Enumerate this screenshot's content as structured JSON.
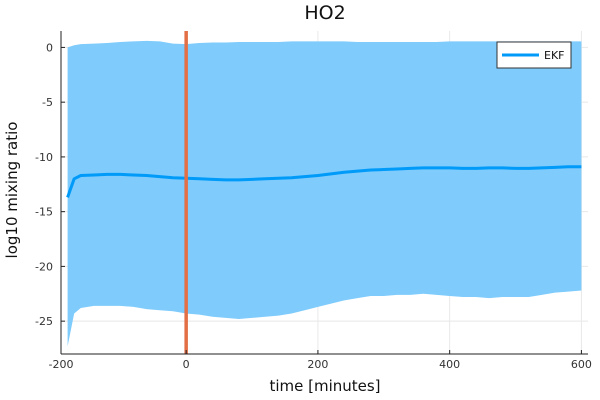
{
  "chart_data": {
    "type": "line",
    "title": "HO2",
    "xlabel": "time [minutes]",
    "ylabel": "log10 mixing ratio",
    "xlim": [
      -190,
      610
    ],
    "ylim": [
      -28,
      1.5
    ],
    "xticks": [
      -200,
      0,
      200,
      400,
      600
    ],
    "xtick_labels": [
      "-200",
      "0",
      "200",
      "400",
      "600"
    ],
    "yticks": [
      0,
      -5,
      -10,
      -15,
      -20,
      -25
    ],
    "ytick_labels": [
      "0",
      "-5",
      "-10",
      "-15",
      "-20",
      "-25"
    ],
    "grid": true,
    "legend_position": "top-right",
    "vline": {
      "x": 0,
      "color": "#e26f46"
    },
    "series": [
      {
        "name": "EKF",
        "color": "#009af9",
        "band_color": "#7ecbfc",
        "x": [
          -180,
          -170,
          -160,
          -140,
          -120,
          -100,
          -80,
          -60,
          -40,
          -20,
          0,
          20,
          40,
          60,
          80,
          100,
          120,
          140,
          160,
          180,
          200,
          220,
          240,
          260,
          280,
          300,
          320,
          340,
          360,
          380,
          400,
          420,
          440,
          460,
          480,
          500,
          520,
          540,
          560,
          580,
          600
        ],
        "y": [
          -13.7,
          -12.0,
          -11.7,
          -11.65,
          -11.6,
          -11.6,
          -11.65,
          -11.7,
          -11.8,
          -11.9,
          -11.95,
          -12.0,
          -12.05,
          -12.1,
          -12.1,
          -12.05,
          -12.0,
          -11.95,
          -11.9,
          -11.8,
          -11.7,
          -11.55,
          -11.4,
          -11.3,
          -11.2,
          -11.15,
          -11.1,
          -11.05,
          -11.0,
          -11.0,
          -11.0,
          -11.05,
          -11.05,
          -11.0,
          -11.0,
          -11.05,
          -11.05,
          -11.0,
          -10.95,
          -10.9,
          -10.9
        ],
        "upper": [
          0.0,
          0.2,
          0.3,
          0.35,
          0.4,
          0.5,
          0.55,
          0.6,
          0.55,
          0.35,
          0.3,
          0.4,
          0.45,
          0.45,
          0.5,
          0.5,
          0.5,
          0.5,
          0.55,
          0.55,
          0.55,
          0.55,
          0.55,
          0.5,
          0.5,
          0.5,
          0.5,
          0.5,
          0.5,
          0.5,
          0.55,
          0.55,
          0.55,
          0.55,
          0.55,
          0.55,
          0.55,
          0.55,
          0.55,
          0.55,
          0.55
        ],
        "lower": [
          -27.3,
          -24.3,
          -23.8,
          -23.6,
          -23.6,
          -23.6,
          -23.7,
          -23.9,
          -24.0,
          -24.1,
          -24.3,
          -24.4,
          -24.6,
          -24.7,
          -24.8,
          -24.7,
          -24.6,
          -24.5,
          -24.3,
          -24.0,
          -23.7,
          -23.4,
          -23.1,
          -22.9,
          -22.7,
          -22.7,
          -22.6,
          -22.6,
          -22.5,
          -22.6,
          -22.7,
          -22.8,
          -22.8,
          -22.9,
          -22.8,
          -22.8,
          -22.8,
          -22.6,
          -22.4,
          -22.3,
          -22.2
        ]
      }
    ]
  }
}
